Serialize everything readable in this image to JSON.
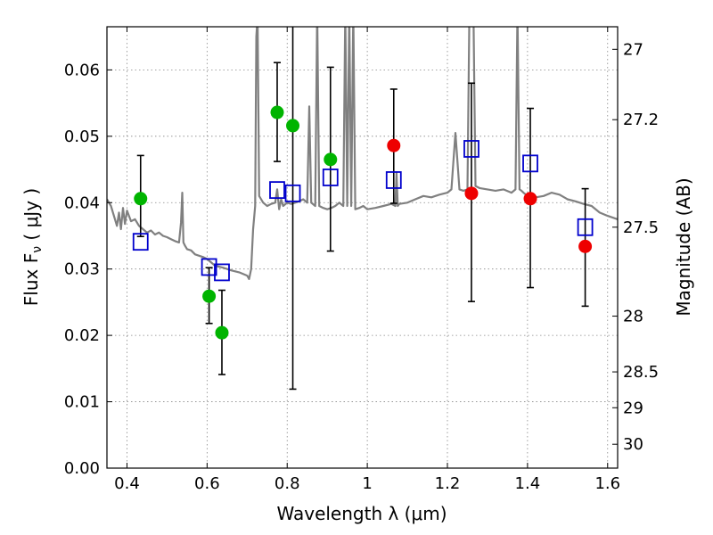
{
  "chart_data": {
    "type": "scatter",
    "xlabel": "Wavelength  λ (μm)",
    "ylabel": "Flux  Fν  ( μJy )",
    "ylabel_right": "Magnitude (AB)",
    "xlim": [
      0.35,
      1.625
    ],
    "ylim": [
      0.0,
      0.0665
    ],
    "grid": true,
    "x_ticks": [
      {
        "value": 0.4,
        "label": "0.4"
      },
      {
        "value": 0.6,
        "label": "0.6"
      },
      {
        "value": 0.8,
        "label": "0.8"
      },
      {
        "value": 1.0,
        "label": "1"
      },
      {
        "value": 1.2,
        "label": "1.2"
      },
      {
        "value": 1.4,
        "label": "1.4"
      },
      {
        "value": 1.6,
        "label": "1.6"
      }
    ],
    "y_ticks": [
      {
        "value": 0.0,
        "label": "0.00"
      },
      {
        "value": 0.01,
        "label": "0.01"
      },
      {
        "value": 0.02,
        "label": "0.02"
      },
      {
        "value": 0.03,
        "label": "0.03"
      },
      {
        "value": 0.04,
        "label": "0.04"
      },
      {
        "value": 0.05,
        "label": "0.05"
      },
      {
        "value": 0.06,
        "label": "0.06"
      }
    ],
    "right_ticks": [
      {
        "flux": 0.0631,
        "label": "27"
      },
      {
        "flux": 0.0525,
        "label": "27.2"
      },
      {
        "flux": 0.0363,
        "label": "27.5"
      },
      {
        "flux": 0.0229,
        "label": "28"
      },
      {
        "flux": 0.0145,
        "label": "28.5"
      },
      {
        "flux": 0.0091,
        "label": "29"
      },
      {
        "flux": 0.0036,
        "label": "30"
      }
    ],
    "colors": {
      "spectrum": "#808080",
      "green_points": "#00b400",
      "red_points": "#ee0000",
      "model_squares": "#0000cc",
      "error_bars": "#000000",
      "grid": "#888888"
    },
    "series": [
      {
        "kind": "spectrum",
        "x": [
          0.35,
          0.36,
          0.37,
          0.375,
          0.38,
          0.385,
          0.39,
          0.395,
          0.4,
          0.41,
          0.42,
          0.43,
          0.44,
          0.45,
          0.46,
          0.47,
          0.48,
          0.49,
          0.5,
          0.51,
          0.52,
          0.53,
          0.535,
          0.538,
          0.541,
          0.545,
          0.55,
          0.56,
          0.57,
          0.58,
          0.59,
          0.6,
          0.62,
          0.64,
          0.66,
          0.68,
          0.7,
          0.705,
          0.71,
          0.715,
          0.72,
          0.723,
          0.726,
          0.73,
          0.735,
          0.74,
          0.75,
          0.76,
          0.77,
          0.775,
          0.78,
          0.785,
          0.79,
          0.8,
          0.81,
          0.82,
          0.83,
          0.84,
          0.85,
          0.855,
          0.86,
          0.87,
          0.875,
          0.88,
          0.89,
          0.9,
          0.91,
          0.92,
          0.93,
          0.94,
          0.945,
          0.95,
          0.955,
          0.96,
          0.965,
          0.97,
          0.98,
          0.99,
          1.0,
          1.02,
          1.04,
          1.06,
          1.07,
          1.073,
          1.076,
          1.08,
          1.1,
          1.12,
          1.14,
          1.16,
          1.18,
          1.2,
          1.21,
          1.22,
          1.23,
          1.24,
          1.25,
          1.255,
          1.26,
          1.265,
          1.27,
          1.28,
          1.3,
          1.32,
          1.34,
          1.36,
          1.37,
          1.375,
          1.38,
          1.385,
          1.39,
          1.4,
          1.42,
          1.44,
          1.46,
          1.48,
          1.5,
          1.52,
          1.54,
          1.56,
          1.58,
          1.6,
          1.625
        ],
        "y": [
          0.0405,
          0.0395,
          0.0375,
          0.0365,
          0.0385,
          0.036,
          0.0392,
          0.0368,
          0.0388,
          0.0372,
          0.0375,
          0.0365,
          0.036,
          0.0355,
          0.0358,
          0.0352,
          0.0355,
          0.035,
          0.0348,
          0.0345,
          0.0342,
          0.034,
          0.037,
          0.0415,
          0.034,
          0.0335,
          0.033,
          0.0328,
          0.0322,
          0.032,
          0.0318,
          0.0315,
          0.0305,
          0.0302,
          0.0298,
          0.0295,
          0.029,
          0.0285,
          0.03,
          0.036,
          0.0395,
          0.065,
          0.068,
          0.041,
          0.0405,
          0.04,
          0.0395,
          0.0398,
          0.04,
          0.042,
          0.039,
          0.0405,
          0.0395,
          0.04,
          0.0398,
          0.04,
          0.0402,
          0.0405,
          0.04,
          0.0545,
          0.04,
          0.0395,
          0.069,
          0.0395,
          0.0392,
          0.039,
          0.0392,
          0.0395,
          0.04,
          0.0395,
          0.069,
          0.0395,
          0.069,
          0.0395,
          0.069,
          0.039,
          0.0392,
          0.0395,
          0.039,
          0.0392,
          0.0395,
          0.0398,
          0.0395,
          0.0445,
          0.0395,
          0.0398,
          0.04,
          0.0405,
          0.041,
          0.0408,
          0.0412,
          0.0415,
          0.042,
          0.0505,
          0.042,
          0.0418,
          0.042,
          0.069,
          0.069,
          0.069,
          0.0425,
          0.0422,
          0.042,
          0.0418,
          0.042,
          0.0415,
          0.042,
          0.069,
          0.042,
          0.0418,
          0.0415,
          0.041,
          0.0408,
          0.041,
          0.0415,
          0.0412,
          0.0405,
          0.0402,
          0.0398,
          0.0395,
          0.0385,
          0.038,
          0.0375
        ]
      },
      {
        "kind": "observed-green",
        "x": [
          0.434,
          0.605,
          0.637,
          0.775,
          0.814,
          0.908
        ],
        "y": [
          0.0406,
          0.0259,
          0.0204,
          0.0536,
          0.0516,
          0.0465
        ],
        "err_low": [
          0.0349,
          0.0218,
          0.0141,
          0.0462,
          0.0119,
          0.0327
        ],
        "err_high": [
          0.0471,
          0.0302,
          0.0268,
          0.0611,
          0.0665,
          0.0604
        ]
      },
      {
        "kind": "observed-red",
        "x": [
          1.066,
          1.26,
          1.407,
          1.544
        ],
        "y": [
          0.0486,
          0.0414,
          0.0406,
          0.0334
        ],
        "err_low": [
          0.0399,
          0.0251,
          0.0272,
          0.0244
        ],
        "err_high": [
          0.0571,
          0.058,
          0.0542,
          0.0421
        ]
      },
      {
        "kind": "model-squares",
        "x": [
          0.434,
          0.605,
          0.637,
          0.775,
          0.814,
          0.908,
          1.066,
          1.26,
          1.407,
          1.544
        ],
        "y": [
          0.0341,
          0.0303,
          0.0295,
          0.0419,
          0.0414,
          0.0438,
          0.0434,
          0.0481,
          0.0459,
          0.0363
        ]
      }
    ]
  }
}
